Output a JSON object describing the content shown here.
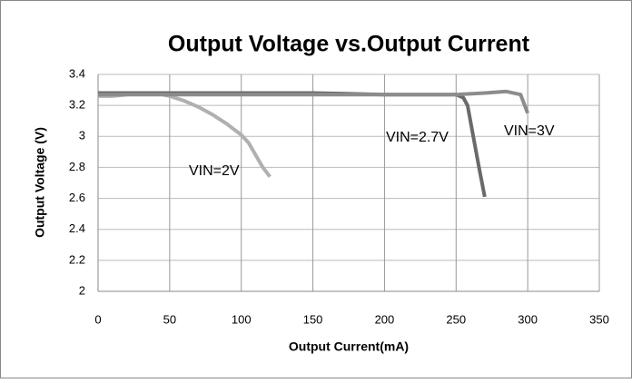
{
  "chart_data": {
    "type": "line",
    "title": "Output Voltage vs.Output Current",
    "x_label": "Output Current(mA)",
    "y_label": "Output Voltage (V)",
    "xlim": [
      0,
      350
    ],
    "xticks": [
      0,
      50,
      100,
      150,
      200,
      250,
      300,
      350
    ],
    "ylim": [
      2,
      3.4
    ],
    "yticks": [
      2,
      2.2,
      2.4,
      2.6,
      2.8,
      3,
      3.2,
      3.4
    ],
    "grid": true,
    "series": [
      {
        "name": "VIN=2V",
        "color": "#b0b0b0",
        "x": [
          0,
          10,
          20,
          30,
          40,
          50,
          60,
          70,
          80,
          90,
          100,
          105,
          110,
          115,
          120
        ],
        "values": [
          3.26,
          3.26,
          3.27,
          3.28,
          3.28,
          3.26,
          3.23,
          3.19,
          3.14,
          3.08,
          3.01,
          2.96,
          2.88,
          2.8,
          2.74
        ]
      },
      {
        "name": "VIN=2.7V",
        "color": "#6a6a6a",
        "x": [
          0,
          50,
          100,
          150,
          200,
          250,
          255,
          258,
          262,
          266,
          270
        ],
        "values": [
          3.28,
          3.28,
          3.28,
          3.28,
          3.27,
          3.27,
          3.25,
          3.2,
          3.0,
          2.8,
          2.61
        ]
      },
      {
        "name": "VIN=3V",
        "color": "#8c8c8c",
        "x": [
          0,
          50,
          100,
          150,
          200,
          250,
          270,
          285,
          295,
          300
        ],
        "values": [
          3.27,
          3.27,
          3.27,
          3.27,
          3.27,
          3.27,
          3.28,
          3.29,
          3.27,
          3.15
        ]
      }
    ]
  }
}
